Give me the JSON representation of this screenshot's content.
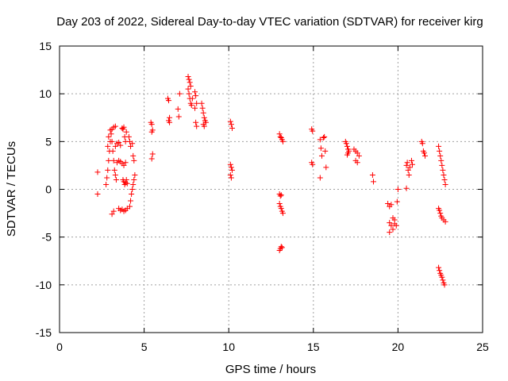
{
  "chart_data": {
    "type": "scatter",
    "title": "Day 203 of 2022, Sidereal Day-to-day VTEC variation (SDTVAR) for receiver kirg",
    "xlabel": "GPS time / hours",
    "ylabel": "SDTVAR / TECUs",
    "xlim": [
      0,
      25
    ],
    "ylim": [
      -15,
      15
    ],
    "xticks": [
      0,
      5,
      10,
      15,
      20,
      25
    ],
    "yticks": [
      -15,
      -10,
      -5,
      0,
      5,
      10,
      15
    ],
    "grid": true,
    "marker": "plus",
    "color": "#ff0000",
    "series": [
      {
        "name": "SDTVAR",
        "points": [
          [
            2.25,
            1.8
          ],
          [
            2.25,
            -0.5
          ],
          [
            2.75,
            0.5
          ],
          [
            2.8,
            1.2
          ],
          [
            2.85,
            2.0
          ],
          [
            2.9,
            3.0
          ],
          [
            2.95,
            4.0
          ],
          [
            3.0,
            5.0
          ],
          [
            3.05,
            5.8
          ],
          [
            3.1,
            6.3
          ],
          [
            3.2,
            6.5
          ],
          [
            3.3,
            6.6
          ],
          [
            2.85,
            4.5
          ],
          [
            2.9,
            5.5
          ],
          [
            3.0,
            6.2
          ],
          [
            3.1,
            5.0
          ],
          [
            3.15,
            4.0
          ],
          [
            3.2,
            3.0
          ],
          [
            3.25,
            2.0
          ],
          [
            3.3,
            1.5
          ],
          [
            3.35,
            1.0
          ],
          [
            3.1,
            -2.6
          ],
          [
            3.2,
            -2.3
          ],
          [
            3.3,
            4.5
          ],
          [
            3.4,
            4.8
          ],
          [
            3.5,
            4.9
          ],
          [
            3.6,
            4.6
          ],
          [
            3.4,
            2.8
          ],
          [
            3.5,
            3.0
          ],
          [
            3.6,
            2.9
          ],
          [
            3.7,
            2.7
          ],
          [
            3.8,
            2.5
          ],
          [
            3.9,
            2.8
          ],
          [
            3.5,
            -2.0
          ],
          [
            3.6,
            -2.2
          ],
          [
            3.7,
            -2.1
          ],
          [
            3.8,
            -2.3
          ],
          [
            3.9,
            -2.2
          ],
          [
            4.0,
            -2.0
          ],
          [
            3.7,
            6.4
          ],
          [
            3.75,
            6.3
          ],
          [
            3.8,
            6.5
          ],
          [
            3.85,
            5.5
          ],
          [
            3.9,
            5.0
          ],
          [
            3.95,
            6.0
          ],
          [
            3.75,
            1.0
          ],
          [
            3.8,
            0.8
          ],
          [
            3.85,
            0.5
          ],
          [
            3.9,
            0.7
          ],
          [
            3.95,
            1.0
          ],
          [
            4.0,
            0.6
          ],
          [
            4.1,
            5.5
          ],
          [
            4.15,
            5.0
          ],
          [
            4.2,
            4.5
          ],
          [
            4.3,
            4.8
          ],
          [
            4.35,
            3.5
          ],
          [
            4.4,
            3.0
          ],
          [
            4.15,
            -1.8
          ],
          [
            4.2,
            -1.2
          ],
          [
            4.25,
            -0.5
          ],
          [
            4.3,
            0.0
          ],
          [
            4.35,
            0.5
          ],
          [
            4.4,
            1.0
          ],
          [
            4.45,
            1.5
          ],
          [
            5.4,
            7.0
          ],
          [
            5.45,
            6.8
          ],
          [
            5.5,
            6.2
          ],
          [
            5.45,
            6.0
          ],
          [
            5.5,
            3.7
          ],
          [
            5.45,
            3.2
          ],
          [
            6.4,
            9.5
          ],
          [
            6.45,
            9.3
          ],
          [
            6.5,
            7.5
          ],
          [
            6.45,
            7.2
          ],
          [
            6.5,
            7.0
          ],
          [
            7.0,
            8.4
          ],
          [
            7.05,
            7.6
          ],
          [
            7.1,
            10.0
          ],
          [
            7.6,
            11.8
          ],
          [
            7.65,
            11.5
          ],
          [
            7.7,
            11.2
          ],
          [
            7.75,
            10.8
          ],
          [
            7.6,
            10.5
          ],
          [
            7.65,
            10.0
          ],
          [
            7.7,
            9.5
          ],
          [
            7.75,
            9.0
          ],
          [
            7.8,
            8.8
          ],
          [
            7.85,
            9.5
          ],
          [
            8.0,
            10.2
          ],
          [
            8.05,
            9.8
          ],
          [
            8.1,
            9.0
          ],
          [
            8.0,
            8.5
          ],
          [
            8.05,
            7.0
          ],
          [
            8.1,
            6.6
          ],
          [
            8.4,
            9.0
          ],
          [
            8.45,
            8.5
          ],
          [
            8.5,
            8.0
          ],
          [
            8.55,
            7.5
          ],
          [
            8.6,
            7.2
          ],
          [
            8.65,
            7.0
          ],
          [
            8.5,
            6.8
          ],
          [
            8.55,
            6.6
          ],
          [
            10.1,
            7.1
          ],
          [
            10.15,
            6.8
          ],
          [
            10.2,
            6.4
          ],
          [
            10.1,
            2.6
          ],
          [
            10.15,
            2.3
          ],
          [
            10.2,
            2.0
          ],
          [
            10.1,
            1.5
          ],
          [
            10.15,
            1.2
          ],
          [
            13.0,
            5.8
          ],
          [
            13.05,
            5.5
          ],
          [
            13.1,
            5.4
          ],
          [
            13.15,
            5.2
          ],
          [
            13.2,
            5.0
          ],
          [
            13.0,
            -0.5
          ],
          [
            13.05,
            -0.7
          ],
          [
            13.1,
            -0.6
          ],
          [
            13.0,
            -1.5
          ],
          [
            13.05,
            -1.8
          ],
          [
            13.1,
            -2.0
          ],
          [
            13.15,
            -2.3
          ],
          [
            13.2,
            -2.5
          ],
          [
            13.0,
            -6.4
          ],
          [
            13.05,
            -6.2
          ],
          [
            13.1,
            -6.0
          ],
          [
            13.15,
            -6.1
          ],
          [
            14.9,
            6.3
          ],
          [
            14.95,
            6.1
          ],
          [
            14.9,
            2.8
          ],
          [
            14.95,
            2.6
          ],
          [
            15.4,
            5.2
          ],
          [
            15.45,
            4.3
          ],
          [
            15.5,
            3.5
          ],
          [
            15.4,
            1.2
          ],
          [
            15.6,
            5.4
          ],
          [
            15.65,
            5.5
          ],
          [
            15.7,
            4.0
          ],
          [
            15.75,
            2.3
          ],
          [
            16.9,
            5.0
          ],
          [
            16.95,
            4.8
          ],
          [
            17.0,
            4.5
          ],
          [
            17.05,
            4.2
          ],
          [
            17.1,
            4.0
          ],
          [
            17.0,
            3.6
          ],
          [
            17.05,
            3.8
          ],
          [
            17.4,
            4.2
          ],
          [
            17.5,
            4.0
          ],
          [
            17.6,
            3.8
          ],
          [
            17.7,
            3.5
          ],
          [
            17.5,
            3.0
          ],
          [
            17.6,
            2.8
          ],
          [
            18.5,
            1.5
          ],
          [
            18.55,
            0.8
          ],
          [
            19.4,
            -1.5
          ],
          [
            19.5,
            -1.8
          ],
          [
            19.6,
            -1.6
          ],
          [
            19.7,
            -3.0
          ],
          [
            19.8,
            -3.2
          ],
          [
            19.5,
            -3.5
          ],
          [
            19.6,
            -3.8
          ],
          [
            19.7,
            -4.2
          ],
          [
            19.5,
            -4.5
          ],
          [
            19.8,
            -3.6
          ],
          [
            19.9,
            -3.8
          ],
          [
            19.95,
            -1.3
          ],
          [
            20.0,
            0.0
          ],
          [
            20.5,
            2.5
          ],
          [
            20.55,
            2.8
          ],
          [
            20.6,
            2.0
          ],
          [
            20.65,
            1.5
          ],
          [
            20.7,
            2.3
          ],
          [
            20.8,
            3.0
          ],
          [
            20.85,
            2.6
          ],
          [
            20.5,
            0.1
          ],
          [
            21.4,
            5.0
          ],
          [
            21.45,
            4.8
          ],
          [
            21.5,
            4.0
          ],
          [
            21.55,
            3.8
          ],
          [
            21.6,
            3.5
          ],
          [
            22.4,
            4.5
          ],
          [
            22.45,
            4.0
          ],
          [
            22.5,
            3.5
          ],
          [
            22.55,
            3.0
          ],
          [
            22.6,
            2.5
          ],
          [
            22.65,
            2.0
          ],
          [
            22.7,
            1.5
          ],
          [
            22.75,
            1.0
          ],
          [
            22.8,
            0.5
          ],
          [
            22.4,
            -2.0
          ],
          [
            22.45,
            -2.2
          ],
          [
            22.5,
            -2.5
          ],
          [
            22.55,
            -2.8
          ],
          [
            22.6,
            -3.0
          ],
          [
            22.7,
            -3.2
          ],
          [
            22.8,
            -3.4
          ],
          [
            22.4,
            -8.2
          ],
          [
            22.45,
            -8.5
          ],
          [
            22.5,
            -8.8
          ],
          [
            22.55,
            -9.0
          ],
          [
            22.6,
            -9.2
          ],
          [
            22.65,
            -9.5
          ],
          [
            22.7,
            -9.8
          ],
          [
            22.75,
            -10.0
          ]
        ]
      }
    ]
  }
}
